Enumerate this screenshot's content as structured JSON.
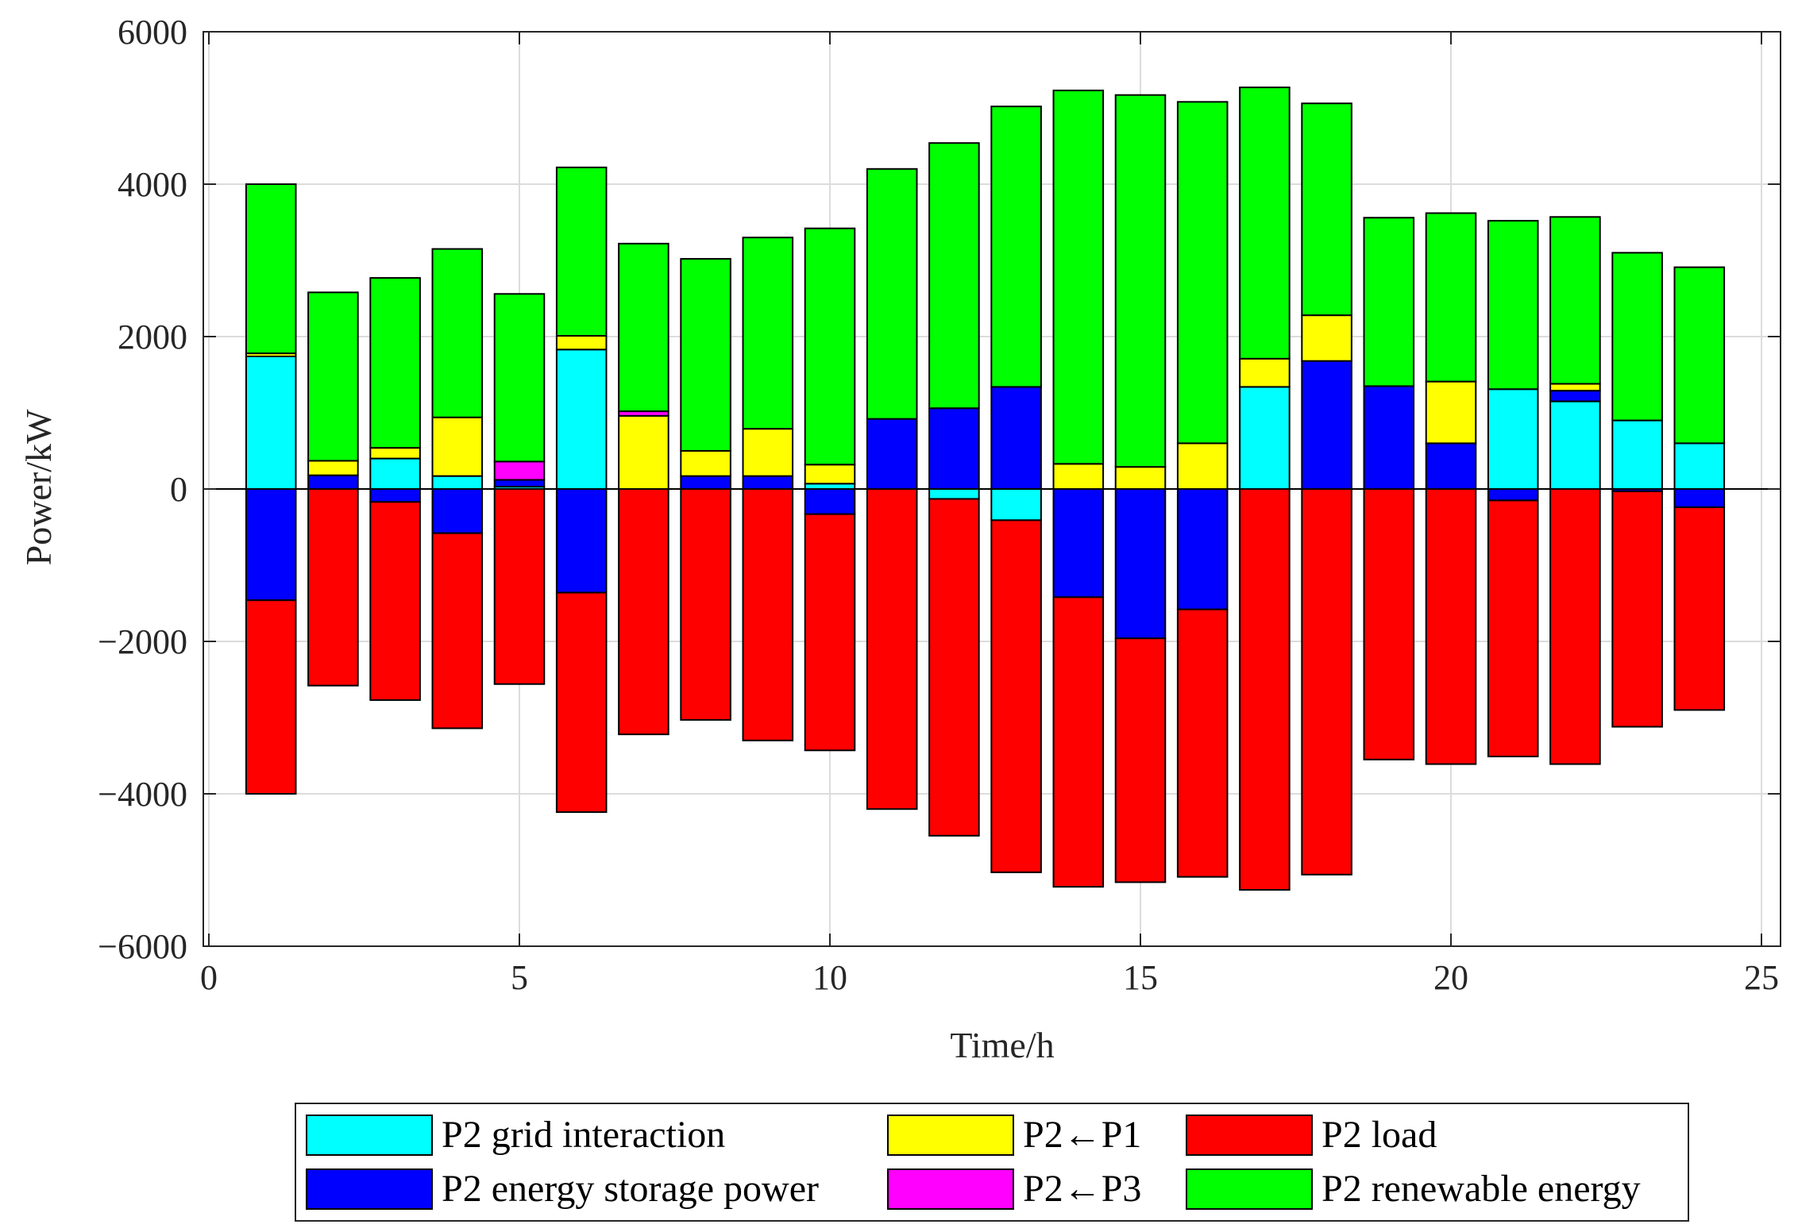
{
  "chart_data": {
    "type": "bar",
    "stacked": true,
    "title": "",
    "xlabel": "Time/h",
    "ylabel": "Power/kW",
    "xlim": [
      0,
      25
    ],
    "ylim": [
      -6000,
      6000
    ],
    "xticks": [
      0,
      5,
      10,
      15,
      20,
      25
    ],
    "yticks": [
      -6000,
      -4000,
      -2000,
      0,
      2000,
      4000,
      6000
    ],
    "ytick_labels": [
      "−6000",
      "−4000",
      "−2000",
      "0",
      "2000",
      "4000",
      "6000"
    ],
    "grid": true,
    "legend_position": "bottom",
    "x": [
      1,
      2,
      3,
      4,
      5,
      6,
      7,
      8,
      9,
      10,
      11,
      12,
      13,
      14,
      15,
      16,
      17,
      18,
      19,
      20,
      21,
      22,
      23,
      24
    ],
    "series": [
      {
        "name": "P2 grid interaction",
        "color": "#00FFFF",
        "values": [
          1740,
          0,
          400,
          170,
          30,
          1830,
          0,
          0,
          0,
          70,
          0,
          -130,
          -410,
          0,
          0,
          0,
          1340,
          0,
          0,
          0,
          1310,
          1150,
          900,
          600
        ]
      },
      {
        "name": "P2 energy storage power",
        "color": "#0000FF",
        "values": [
          -1460,
          180,
          -170,
          -580,
          90,
          -1360,
          0,
          170,
          170,
          -330,
          920,
          1060,
          1340,
          -1420,
          -1960,
          -1580,
          0,
          1680,
          1350,
          600,
          -150,
          140,
          -30,
          -240
        ]
      },
      {
        "name": "P2←P1",
        "color": "#FFFF00",
        "values": [
          40,
          190,
          140,
          770,
          0,
          180,
          960,
          330,
          620,
          250,
          0,
          0,
          0,
          330,
          290,
          600,
          370,
          600,
          0,
          810,
          0,
          90,
          0,
          0
        ]
      },
      {
        "name": "P2←P3",
        "color": "#FF00FF",
        "values": [
          0,
          0,
          0,
          0,
          240,
          0,
          60,
          0,
          0,
          0,
          0,
          0,
          0,
          0,
          0,
          0,
          0,
          0,
          0,
          0,
          0,
          0,
          0,
          0
        ]
      },
      {
        "name": "P2 load",
        "color": "#FF0000",
        "values": [
          -2540,
          -2580,
          -2600,
          -2560,
          -2560,
          -2880,
          -3220,
          -3030,
          -3300,
          -3100,
          -4200,
          -4420,
          -4620,
          -3800,
          -3200,
          -3510,
          -5260,
          -5060,
          -3550,
          -3610,
          -3360,
          -3610,
          -3090,
          -2660
        ]
      },
      {
        "name": "P2 renewable energy",
        "color": "#00FF00",
        "values": [
          2220,
          2210,
          2230,
          2210,
          2200,
          2210,
          2200,
          2520,
          2510,
          3100,
          3280,
          3480,
          3680,
          4900,
          4880,
          4480,
          3560,
          2780,
          2210,
          2210,
          2210,
          2190,
          2200,
          2310
        ]
      }
    ]
  }
}
